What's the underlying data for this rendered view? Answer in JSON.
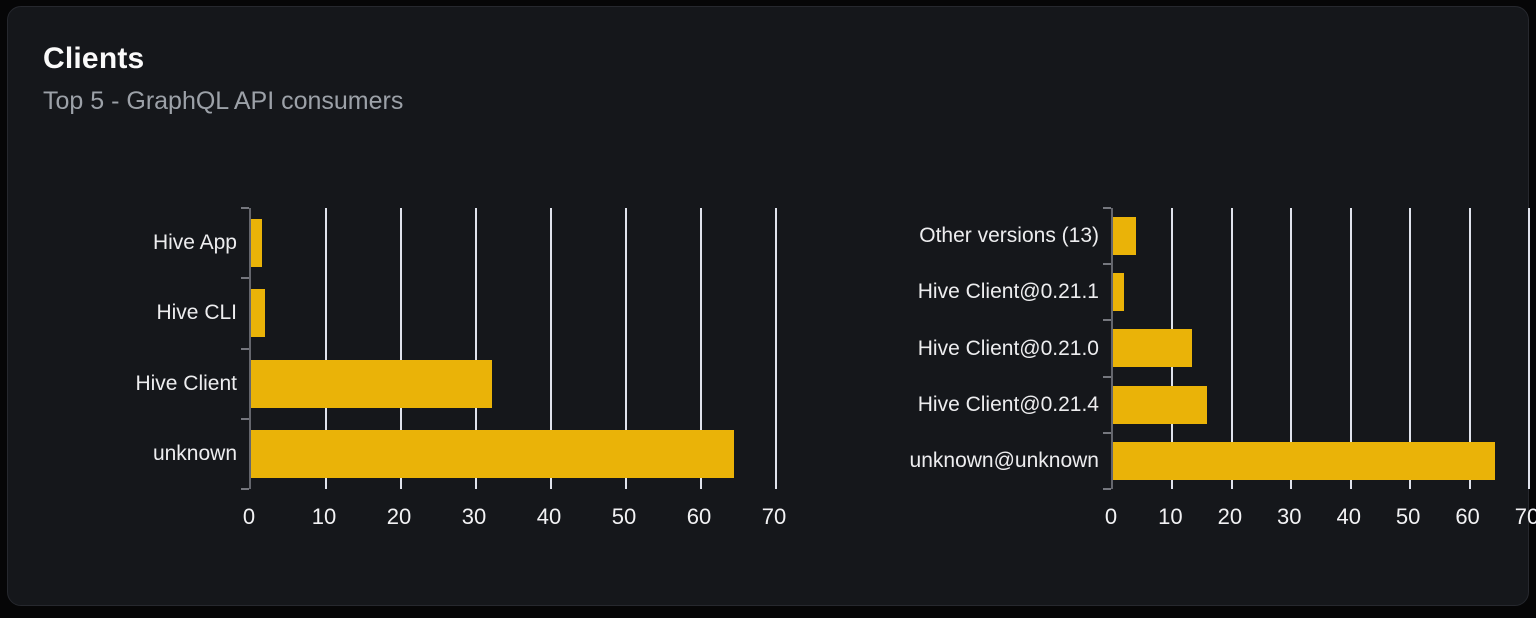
{
  "card": {
    "title": "Clients",
    "subtitle": "Top 5 - GraphQL API consumers"
  },
  "colors": {
    "bar": "#eab308",
    "card_background": "#15171b",
    "page_background": "#060607",
    "card_border": "#26282e",
    "gridline": "#e0e3ec",
    "axis": "#64666d",
    "y_label_text": "#ededef",
    "x_label_text": "#f2f2f4",
    "title_text": "#fafafa",
    "subtitle_text": "#9ca1a8"
  },
  "chart_data": [
    {
      "name": "clients-by-name",
      "type": "bar",
      "orientation": "horizontal",
      "categories": [
        "Hive App",
        "Hive CLI",
        "Hive Client",
        "unknown"
      ],
      "values": [
        1.4,
        1.9,
        32.1,
        64.4
      ],
      "xlim": [
        0,
        70
      ],
      "xticks": [
        0,
        10,
        20,
        30,
        40,
        50,
        60,
        70
      ],
      "grid": "vertical-gridlines",
      "legend": "none",
      "title": ""
    },
    {
      "name": "clients-by-version",
      "type": "bar",
      "orientation": "horizontal",
      "categories": [
        "Other versions (13)",
        "Hive Client@0.21.1",
        "Hive Client@0.21.0",
        "Hive Client@0.21.4",
        "unknown@unknown"
      ],
      "values": [
        3.8,
        1.8,
        13.3,
        15.9,
        64.2
      ],
      "xlim": [
        0,
        70
      ],
      "xticks": [
        0,
        10,
        20,
        30,
        40,
        50,
        60,
        70
      ],
      "grid": "vertical-gridlines",
      "legend": "none",
      "title": ""
    }
  ]
}
